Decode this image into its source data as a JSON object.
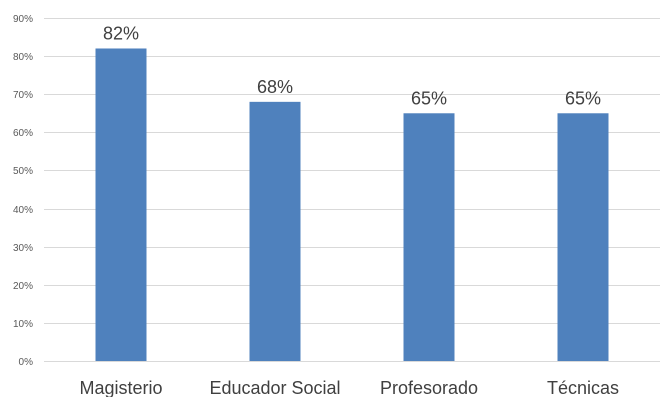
{
  "chart_data": {
    "type": "bar",
    "categories": [
      "Magisterio",
      "Educador Social",
      "Profesorado",
      "Técnicas"
    ],
    "values": [
      82,
      68,
      65,
      65
    ],
    "data_labels": [
      "82%",
      "68%",
      "65%",
      "65%"
    ],
    "title": "",
    "xlabel": "",
    "ylabel": "",
    "ylim": [
      0,
      90
    ],
    "y_ticks": [
      0,
      10,
      20,
      30,
      40,
      50,
      60,
      70,
      80,
      90
    ],
    "y_tick_labels": [
      "0%",
      "10%",
      "20%",
      "30%",
      "40%",
      "50%",
      "60%",
      "70%",
      "80%",
      "90%"
    ],
    "grid": true,
    "legend": "none",
    "bar_color": "#4f81bd"
  }
}
